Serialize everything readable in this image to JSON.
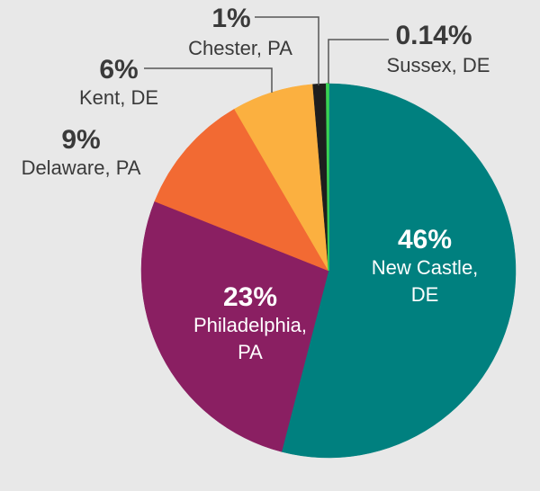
{
  "chart_data": {
    "type": "pie",
    "title": "",
    "start_angle_deg": 0,
    "direction": "clockwise",
    "slices": [
      {
        "label_lines": [
          "New Castle,",
          "DE"
        ],
        "value": 46,
        "pct_label": "46%",
        "color": "#00807f",
        "label_color": "#ffffff"
      },
      {
        "label_lines": [
          "Philadelphia,",
          "PA"
        ],
        "value": 23,
        "pct_label": "23%",
        "color": "#8a1f62",
        "label_color": "#ffffff"
      },
      {
        "label_lines": [
          "Delaware, PA"
        ],
        "value": 9,
        "pct_label": "9%",
        "color": "#f26a33",
        "label_color": "#3a3a3a"
      },
      {
        "label_lines": [
          "Kent, DE"
        ],
        "value": 6,
        "pct_label": "6%",
        "color": "#fbb040",
        "label_color": "#3a3a3a"
      },
      {
        "label_lines": [
          "Chester, PA"
        ],
        "value": 1,
        "pct_label": "1%",
        "color": "#1e1e1e",
        "label_color": "#3a3a3a"
      },
      {
        "label_lines": [
          "Sussex, DE"
        ],
        "value": 0.14,
        "pct_label": "0.14%",
        "color": "#39d353",
        "label_color": "#3a3a3a"
      }
    ]
  }
}
